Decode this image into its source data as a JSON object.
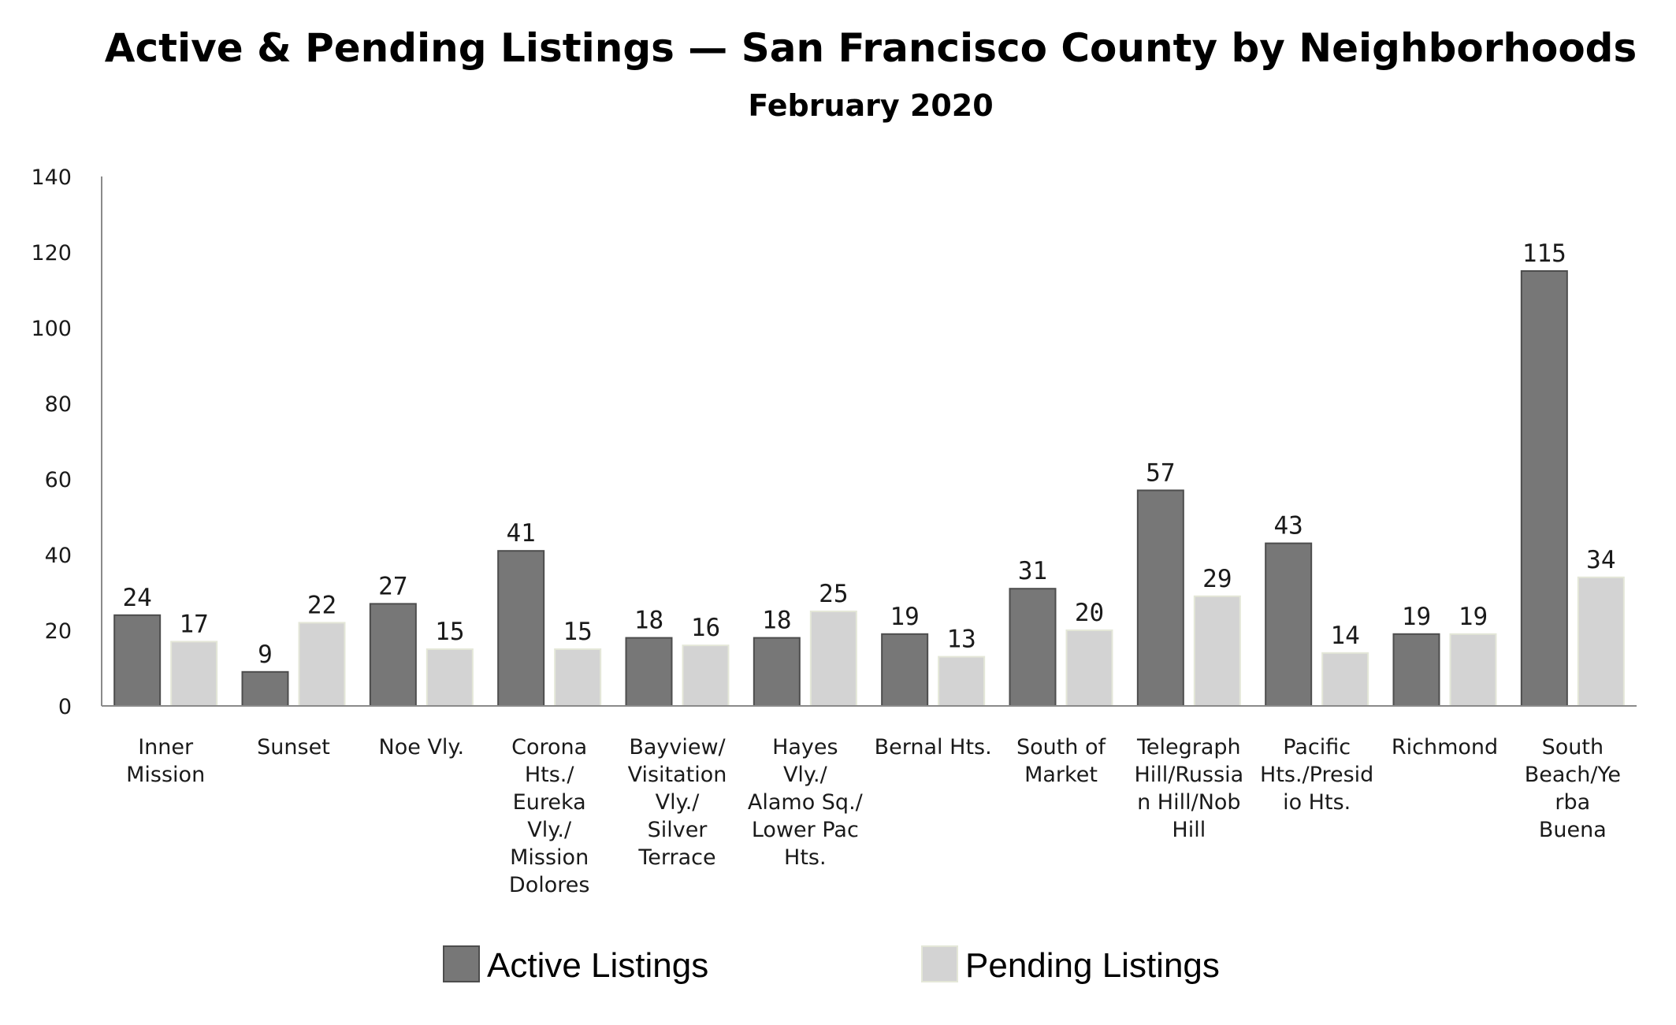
{
  "chart_data": {
    "type": "bar",
    "title": "Active & Pending Listings — San Francisco County by Neighborhoods",
    "subtitle": "February 2020",
    "xlabel": "",
    "ylabel": "",
    "ylim": [
      0,
      140
    ],
    "yticks": [
      "0",
      "20",
      "40",
      "60",
      "80",
      "100",
      "120",
      "140"
    ],
    "grid": false,
    "legend_position": "bottom",
    "categories": [
      [
        "Inner",
        "Mission"
      ],
      [
        "Sunset"
      ],
      [
        "Noe Vly."
      ],
      [
        "Corona",
        "Hts./",
        "Eureka",
        "Vly./",
        "Mission",
        "Dolores"
      ],
      [
        "Bayview/",
        "Visitation",
        "Vly./",
        "Silver",
        "Terrace"
      ],
      [
        "Hayes",
        "Vly./",
        "Alamo Sq./",
        "Lower Pac",
        "Hts."
      ],
      [
        "Bernal Hts."
      ],
      [
        "South of",
        "Market"
      ],
      [
        "Telegraph",
        "Hill/Russia",
        "n Hill/Nob",
        "Hill"
      ],
      [
        "Pacific",
        "Hts./Presid",
        "io Hts."
      ],
      [
        "Richmond"
      ],
      [
        "South",
        "Beach/Ye",
        "rba",
        "Buena"
      ]
    ],
    "series": [
      {
        "name": "Active Listings",
        "color": "#777777",
        "values": [
          24,
          9,
          27,
          41,
          18,
          18,
          19,
          31,
          57,
          43,
          19,
          115
        ]
      },
      {
        "name": "Pending Listings",
        "color": "#d3d3d3",
        "values": [
          17,
          22,
          15,
          15,
          16,
          25,
          13,
          20,
          29,
          14,
          19,
          34
        ]
      }
    ]
  }
}
